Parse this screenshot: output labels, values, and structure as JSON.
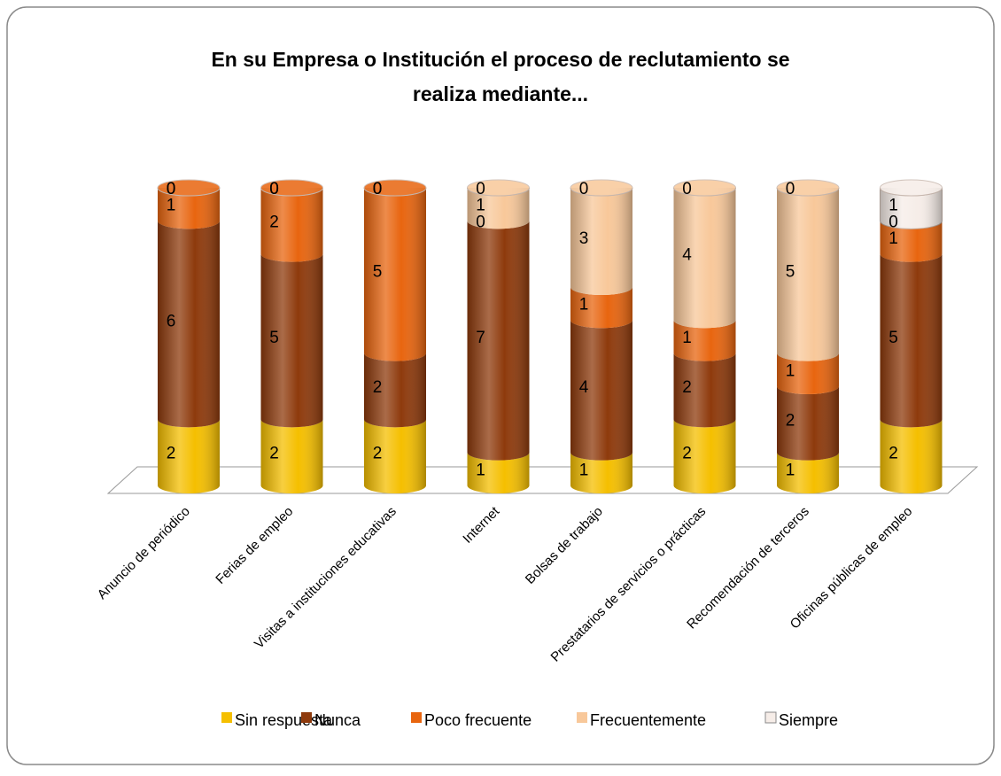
{
  "chart_data": {
    "type": "stacked-cylinder-bar",
    "title": "En su Empresa o Institución el proceso de reclutamiento se realiza mediante...",
    "categories": [
      "Anuncio de periódico",
      "Ferias de empleo",
      "Visitas a instituciones educativas",
      "Internet",
      "Bolsas de trabajo",
      "Prestatarios de servicios o prácticas",
      "Recomendación de terceros",
      "Oficinas públicas de empleo"
    ],
    "series": [
      {
        "name": "Sin respuesta",
        "color": "#f5bf00",
        "values": [
          2,
          2,
          2,
          1,
          1,
          2,
          1,
          2
        ]
      },
      {
        "name": "Nunca",
        "color": "#8e3a0c",
        "values": [
          6,
          5,
          2,
          7,
          4,
          2,
          2,
          5
        ]
      },
      {
        "name": "Poco frecuente",
        "color": "#e8650f",
        "values": [
          1,
          2,
          5,
          0,
          1,
          1,
          1,
          1
        ]
      },
      {
        "name": "Frecuentemente",
        "color": "#f8c89a",
        "values": [
          0,
          0,
          0,
          1,
          3,
          4,
          5,
          0
        ]
      },
      {
        "name": "Siempre",
        "color": "#f6ede8",
        "values": [
          0,
          0,
          0,
          0,
          0,
          0,
          0,
          1
        ]
      }
    ],
    "legend": "bottom"
  }
}
